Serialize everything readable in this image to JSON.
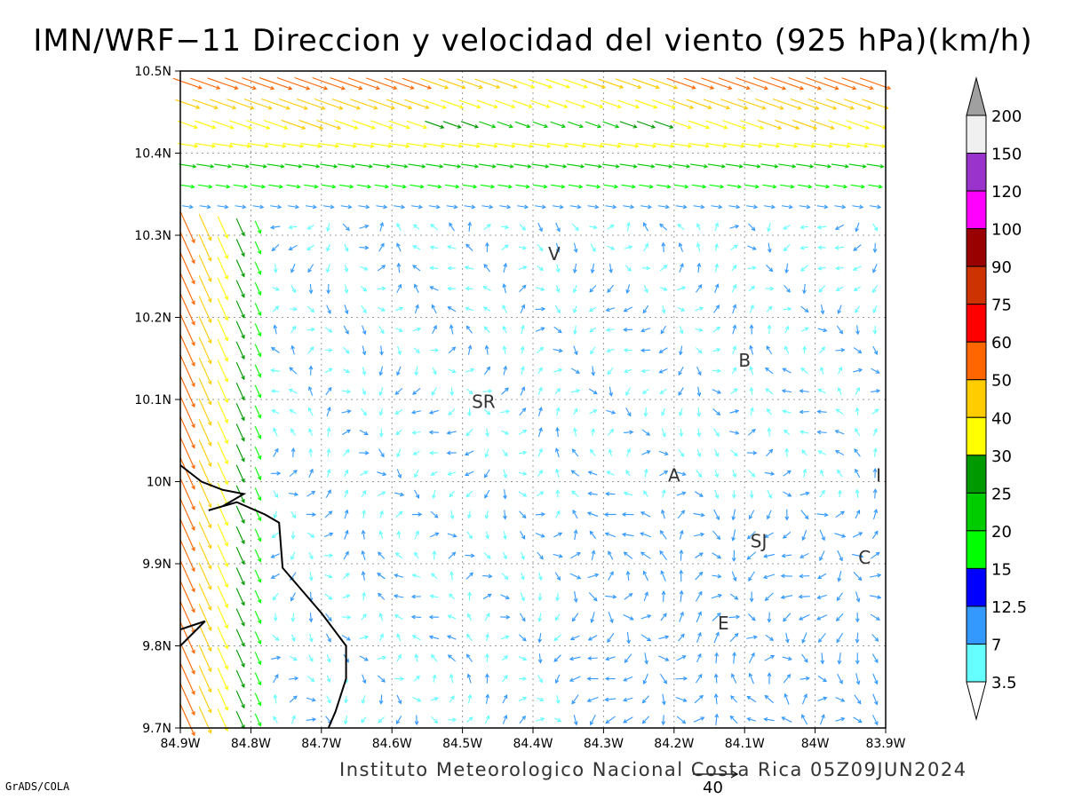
{
  "title": "IMN/WRF−11 Direccion y velocidad del viento (925 hPa)(km/h)",
  "credit": "Instituto Meteorologico Nacional Costa Rica 05Z09JUN2024",
  "software": "GrADS/COLA",
  "reference_vector": {
    "label": "40",
    "speed": 40
  },
  "axes": {
    "x_ticks": [
      "84.9W",
      "84.8W",
      "84.7W",
      "84.6W",
      "84.5W",
      "84.4W",
      "84.3W",
      "84.2W",
      "84.1W",
      "84W",
      "83.9W"
    ],
    "y_ticks": [
      "10.5N",
      "10.4N",
      "10.3N",
      "10.2N",
      "10.1N",
      "10N",
      "9.9N",
      "9.8N",
      "9.7N"
    ],
    "lon_range": [
      -84.9,
      -83.9
    ],
    "lat_range": [
      9.7,
      10.5
    ],
    "grid": "dotted"
  },
  "legend": {
    "levels": [
      "3.5",
      "7",
      "12.5",
      "15",
      "20",
      "25",
      "30",
      "40",
      "50",
      "60",
      "75",
      "90",
      "100",
      "120",
      "150",
      "200"
    ],
    "colors": [
      "#ffffff",
      "#66ffff",
      "#3399ff",
      "#0000ff",
      "#00ff00",
      "#00cc00",
      "#009900",
      "#ffff00",
      "#ffcc00",
      "#ff6600",
      "#ff0000",
      "#cc3300",
      "#990000",
      "#ff00ff",
      "#9933cc",
      "#f0f0f0",
      "#a0a0a0"
    ]
  },
  "places": [
    {
      "label": "V",
      "lon": -84.37,
      "lat": 10.27
    },
    {
      "label": "B",
      "lon": -84.1,
      "lat": 10.14
    },
    {
      "label": "SR",
      "lon": -84.47,
      "lat": 10.09
    },
    {
      "label": "A",
      "lon": -84.2,
      "lat": 10.0
    },
    {
      "label": "I",
      "lon": -83.91,
      "lat": 10.0
    },
    {
      "label": "SJ",
      "lon": -84.08,
      "lat": 9.92
    },
    {
      "label": "C",
      "lon": -83.93,
      "lat": 9.9
    },
    {
      "label": "E",
      "lon": -84.13,
      "lat": 9.82
    }
  ],
  "coastline": [
    [
      -84.9,
      10.02
    ],
    [
      -84.87,
      10.0
    ],
    [
      -84.84,
      9.99
    ],
    [
      -84.81,
      9.985
    ],
    [
      -84.84,
      9.97
    ],
    [
      -84.86,
      9.965
    ],
    [
      -84.82,
      9.975
    ],
    [
      -84.78,
      9.96
    ],
    [
      -84.76,
      9.95
    ],
    [
      -84.755,
      9.895
    ],
    [
      -84.73,
      9.87
    ],
    [
      -84.7,
      9.84
    ],
    [
      -84.665,
      9.8
    ],
    [
      -84.665,
      9.76
    ],
    [
      -84.68,
      9.72
    ],
    [
      -84.69,
      9.7
    ]
  ],
  "peninsula": [
    [
      -84.9,
      9.8
    ],
    [
      -84.865,
      9.83
    ],
    [
      -84.9,
      9.82
    ]
  ]
}
